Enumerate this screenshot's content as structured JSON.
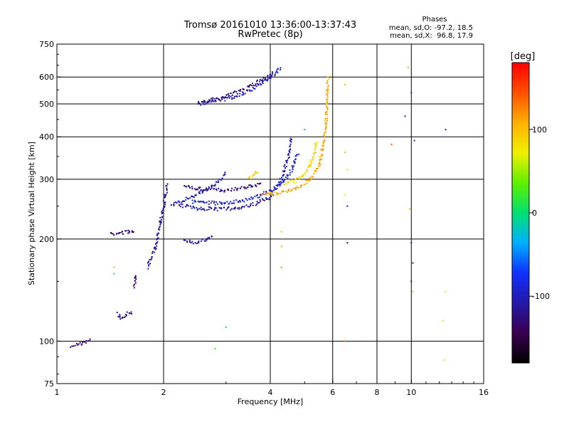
{
  "chart_data": {
    "type": "scatter",
    "title": "Tromsø 20161010 13:36:00-13:37:43",
    "subtitle": "RwPretec (8p)",
    "xlabel": "Frequency [MHz]",
    "ylabel": "Stationary phase Virtual Height [km]",
    "x_scale": "log",
    "y_scale": "log",
    "xlim": [
      1,
      16
    ],
    "ylim": [
      75,
      750
    ],
    "x_ticks": [
      1,
      2,
      4,
      6,
      8,
      10,
      16
    ],
    "y_ticks": [
      75,
      100,
      200,
      300,
      400,
      500,
      600,
      750
    ],
    "x_gridlines": [
      2,
      4,
      6,
      8,
      10
    ],
    "y_gridlines": [
      100,
      200,
      300,
      400,
      500,
      600
    ],
    "grid": true,
    "colorbar": {
      "label": "[deg]",
      "range": [
        -180,
        180
      ],
      "ticks": [
        -100,
        0,
        100
      ]
    },
    "stats": {
      "heading": "Phases",
      "line_o": "mean, sd,O: -97.2, 18.5",
      "line_x": "mean, sd,X:  96.8, 17.9"
    },
    "traces": [
      {
        "points": [
          [
            1.1,
            97
          ],
          [
            1.15,
            98
          ],
          [
            1.2,
            99
          ],
          [
            1.25,
            101
          ]
        ],
        "phase": -135
      },
      {
        "points": [
          [
            1.42,
            207
          ],
          [
            1.5,
            208
          ],
          [
            1.58,
            210
          ],
          [
            1.66,
            212
          ]
        ],
        "phase": -130
      },
      {
        "points": [
          [
            1.48,
            120
          ],
          [
            1.52,
            117
          ],
          [
            1.58,
            121
          ],
          [
            1.64,
            122
          ]
        ],
        "phase": -125
      },
      {
        "points": [
          [
            1.65,
            145
          ],
          [
            1.68,
            158
          ]
        ],
        "phase": -130
      },
      {
        "points": [
          [
            1.8,
            165
          ],
          [
            1.85,
            175
          ],
          [
            1.9,
            190
          ],
          [
            1.95,
            220
          ],
          [
            2.0,
            250
          ],
          [
            2.05,
            290
          ]
        ],
        "phase": -115
      },
      {
        "points": [
          [
            2.3,
            200
          ],
          [
            2.45,
            195
          ],
          [
            2.6,
            198
          ],
          [
            2.75,
            205
          ]
        ],
        "phase": -115
      },
      {
        "points": [
          [
            2.1,
            250
          ],
          [
            2.3,
            262
          ],
          [
            2.5,
            272
          ],
          [
            2.7,
            283
          ],
          [
            2.9,
            300
          ],
          [
            3.0,
            315
          ]
        ],
        "phase": -100
      },
      {
        "points": [
          [
            2.2,
            252
          ],
          [
            2.5,
            246
          ],
          [
            3.0,
            245
          ],
          [
            3.5,
            250
          ],
          [
            4.0,
            265
          ],
          [
            4.3,
            300
          ],
          [
            4.5,
            350
          ],
          [
            4.6,
            400
          ]
        ],
        "phase": -110
      },
      {
        "points": [
          [
            2.4,
            258
          ],
          [
            2.8,
            255
          ],
          [
            3.3,
            258
          ],
          [
            3.8,
            270
          ],
          [
            4.3,
            290
          ],
          [
            4.6,
            320
          ],
          [
            4.8,
            360
          ]
        ],
        "phase": -90
      },
      {
        "points": [
          [
            2.3,
            285
          ],
          [
            2.6,
            280
          ],
          [
            3.0,
            278
          ],
          [
            3.4,
            284
          ],
          [
            3.8,
            292
          ]
        ],
        "phase": -125
      },
      {
        "points": [
          [
            2.5,
            500
          ],
          [
            2.8,
            510
          ],
          [
            3.2,
            525
          ],
          [
            3.6,
            555
          ],
          [
            4.0,
            600
          ],
          [
            4.3,
            640
          ]
        ],
        "phase": -100
      },
      {
        "points": [
          [
            2.5,
            505
          ],
          [
            2.9,
            520
          ],
          [
            3.3,
            545
          ],
          [
            3.7,
            580
          ],
          [
            4.1,
            620
          ]
        ],
        "phase": -125
      },
      {
        "points": [
          [
            3.8,
            270
          ],
          [
            4.3,
            273
          ],
          [
            4.8,
            282
          ],
          [
            5.2,
            300
          ],
          [
            5.5,
            330
          ],
          [
            5.65,
            380
          ],
          [
            5.75,
            450
          ],
          [
            5.8,
            520
          ],
          [
            5.82,
            600
          ]
        ],
        "phase": 110
      },
      {
        "points": [
          [
            4.4,
            290
          ],
          [
            4.8,
            300
          ],
          [
            5.1,
            320
          ],
          [
            5.3,
            350
          ],
          [
            5.4,
            390
          ]
        ],
        "phase": 85
      },
      {
        "points": [
          [
            3.5,
            300
          ],
          [
            3.7,
            320
          ]
        ],
        "phase": 90
      }
    ],
    "scatter_points": [
      [
        9.8,
        640,
        110
      ],
      [
        12.5,
        420,
        -100
      ],
      [
        10.2,
        390,
        -95
      ],
      [
        8.8,
        380,
        150
      ],
      [
        6.5,
        360,
        50
      ],
      [
        6.6,
        320,
        60
      ],
      [
        6.5,
        270,
        70
      ],
      [
        6.6,
        250,
        -110
      ],
      [
        9.9,
        245,
        100
      ],
      [
        6.6,
        195,
        -115
      ],
      [
        4.3,
        210,
        95
      ],
      [
        4.3,
        190,
        110
      ],
      [
        4.3,
        165,
        120
      ],
      [
        10.0,
        150,
        -120
      ],
      [
        10.1,
        140,
        100
      ],
      [
        12.5,
        140,
        80
      ],
      [
        12.3,
        115,
        90
      ],
      [
        12.4,
        88,
        60
      ],
      [
        6.5,
        100,
        140
      ],
      [
        10.0,
        195,
        -110
      ],
      [
        10.1,
        170,
        -110
      ],
      [
        1.45,
        165,
        110
      ],
      [
        1.45,
        158,
        10
      ],
      [
        2.8,
        95,
        20
      ],
      [
        3.0,
        110,
        0
      ],
      [
        9.6,
        460,
        -100
      ],
      [
        10.0,
        540,
        -100
      ],
      [
        6.5,
        570,
        100
      ],
      [
        5.5,
        350,
        80
      ],
      [
        5.0,
        420,
        -20
      ]
    ]
  }
}
